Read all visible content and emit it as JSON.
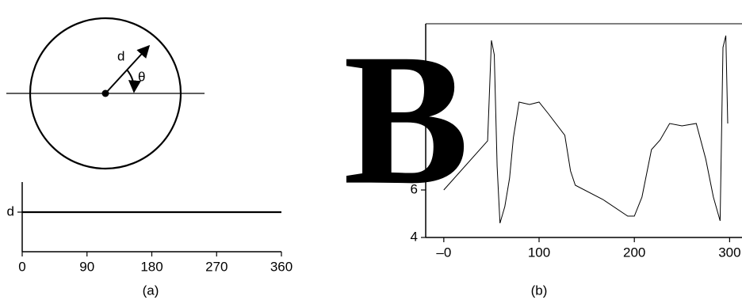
{
  "diagram": {
    "radius_label": "d",
    "angle_label": "θ"
  },
  "chart_data": [
    {
      "type": "line",
      "caption": "(a)",
      "x": [
        0,
        360
      ],
      "values": [
        1,
        1
      ],
      "color": "#000000",
      "xlim": [
        0,
        360
      ],
      "xticks": [
        0,
        90,
        180,
        270,
        360
      ],
      "ylim": [
        0,
        1.76
      ],
      "yticks": [
        {
          "value": 1,
          "label": "d"
        }
      ]
    },
    {
      "type": "line",
      "caption": "(b)",
      "glyph": "B",
      "x": [
        0,
        46,
        50,
        53,
        56,
        59,
        64,
        69,
        73,
        79,
        90,
        100,
        110,
        127,
        133,
        138,
        167,
        193,
        200,
        208,
        218,
        227,
        237,
        250,
        265,
        275,
        283,
        290,
        293,
        296,
        298
      ],
      "values": [
        6,
        8.07,
        12.3,
        11.7,
        7,
        4.6,
        5.3,
        6.5,
        8.2,
        9.7,
        9.6,
        9.7,
        9.2,
        8.3,
        6.8,
        6.2,
        5.6,
        4.9,
        4.9,
        5.7,
        7.7,
        8.1,
        8.8,
        8.7,
        8.8,
        7.3,
        5.7,
        4.7,
        12,
        12.5,
        8.8
      ],
      "color": "#000000",
      "xlim": [
        -19,
        313
      ],
      "xticks": [
        {
          "value": 0,
          "label": "–0"
        },
        100,
        200,
        300
      ],
      "ylim": [
        4,
        13
      ],
      "yticks": [
        4,
        6
      ]
    }
  ]
}
